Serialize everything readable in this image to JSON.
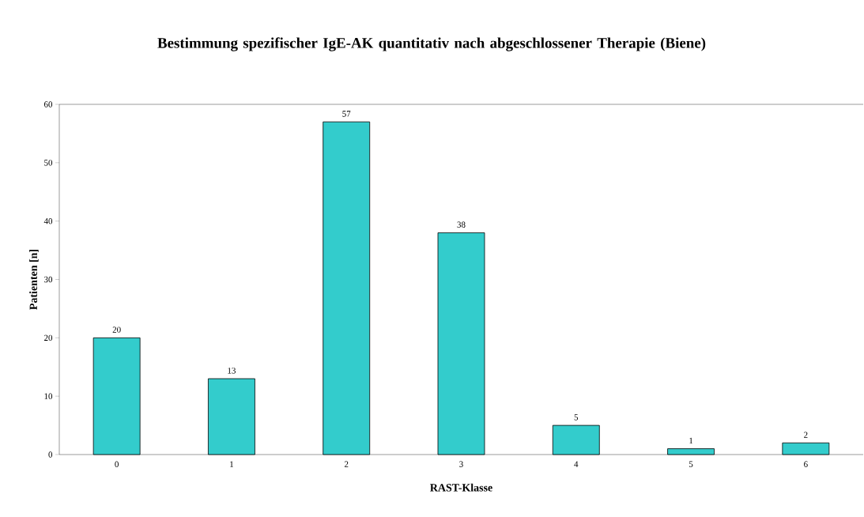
{
  "chart_data": {
    "type": "bar",
    "title": "Bestimmung spezifischer IgE-AK quantitativ nach abgeschlossener Therapie (Biene)",
    "xlabel": "RAST-Klasse",
    "ylabel": "Patienten [n]",
    "categories": [
      "0",
      "1",
      "2",
      "3",
      "4",
      "5",
      "6"
    ],
    "values": [
      20,
      13,
      57,
      38,
      5,
      1,
      2
    ],
    "color": "#33cccc",
    "ylim": [
      0,
      60
    ],
    "yticks": [
      0,
      10,
      20,
      30,
      40,
      50,
      60
    ],
    "data_labels": true
  }
}
